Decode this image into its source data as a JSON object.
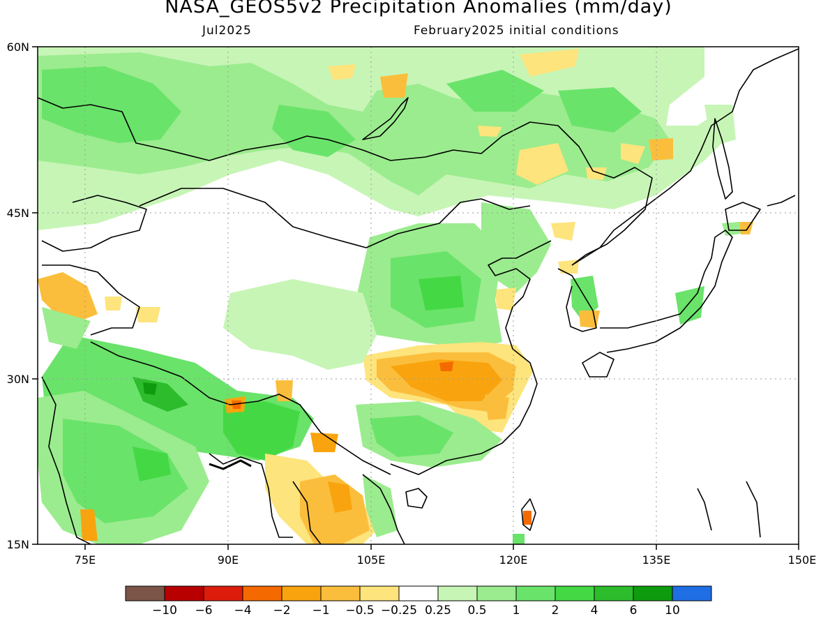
{
  "title": "NASA_GEOS5v2 Precipitation Anomalies (mm/day)",
  "subtitle_left": "Jul2025",
  "subtitle_right": "February2025 initial conditions",
  "map": {
    "lon_range": [
      70,
      150
    ],
    "lat_range": [
      15,
      60
    ],
    "x_ticks": [
      "75E",
      "90E",
      "105E",
      "120E",
      "135E",
      "150E"
    ],
    "y_ticks": [
      "60N",
      "45N",
      "30N",
      "15N"
    ],
    "gridlines": "dotted"
  },
  "colorbar": {
    "labels": [
      "−10",
      "−6",
      "−4",
      "−2",
      "−1",
      "−0.5",
      "−0.25",
      "0.25",
      "0.5",
      "1",
      "2",
      "4",
      "6",
      "10"
    ],
    "colors": [
      "#7a5548",
      "#b80000",
      "#dd1c0c",
      "#f56a00",
      "#f9a40e",
      "#fbbe3c",
      "#fde47c",
      "#ffffff",
      "#c7f5b6",
      "#9bec8e",
      "#6ae36a",
      "#44d944",
      "#2cbc2c",
      "#0e9c0e",
      "#1f6ee4"
    ]
  }
}
